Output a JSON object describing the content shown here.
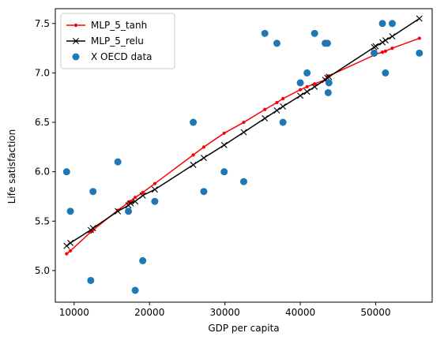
{
  "chart_data": {
    "type": "line",
    "xlabel": "GDP per capita",
    "ylabel": "Life satisfaction",
    "xlim": [
      7500,
      57500
    ],
    "ylim": [
      4.68,
      7.65
    ],
    "xticks": [
      10000,
      20000,
      30000,
      40000,
      50000
    ],
    "xtick_labels": [
      "10000",
      "20000",
      "30000",
      "40000",
      "50000"
    ],
    "yticks": [
      5.0,
      5.5,
      6.0,
      6.5,
      7.0,
      7.5
    ],
    "ytick_labels": [
      "5.0",
      "5.5",
      "6.0",
      "6.5",
      "7.0",
      "7.5"
    ],
    "grid": false,
    "legend_position": "top-left",
    "series": [
      {
        "name": "MLP_5_tanh",
        "kind": "line",
        "color": "#ff0000",
        "marker": "dot",
        "points": [
          [
            9000,
            5.17
          ],
          [
            9500,
            5.2
          ],
          [
            12200,
            5.39
          ],
          [
            12500,
            5.41
          ],
          [
            15800,
            5.61
          ],
          [
            17200,
            5.69
          ],
          [
            17500,
            5.7
          ],
          [
            18100,
            5.74
          ],
          [
            19100,
            5.79
          ],
          [
            20700,
            5.88
          ],
          [
            25800,
            6.17
          ],
          [
            27200,
            6.25
          ],
          [
            29900,
            6.39
          ],
          [
            32500,
            6.5
          ],
          [
            35300,
            6.63
          ],
          [
            36900,
            6.7
          ],
          [
            37700,
            6.74
          ],
          [
            40000,
            6.83
          ],
          [
            40900,
            6.86
          ],
          [
            41900,
            6.89
          ],
          [
            43300,
            6.93
          ],
          [
            43600,
            6.96
          ],
          [
            43800,
            6.97
          ],
          [
            49800,
            7.18
          ],
          [
            50000,
            7.19
          ],
          [
            50900,
            7.21
          ],
          [
            51300,
            7.22
          ],
          [
            52200,
            7.25
          ],
          [
            55800,
            7.35
          ]
        ]
      },
      {
        "name": "MLP_5_relu",
        "kind": "line",
        "color": "#000000",
        "marker": "x",
        "points": [
          [
            9000,
            5.25
          ],
          [
            9500,
            5.28
          ],
          [
            12200,
            5.41
          ],
          [
            12500,
            5.43
          ],
          [
            15800,
            5.6
          ],
          [
            17200,
            5.66
          ],
          [
            17500,
            5.68
          ],
          [
            18100,
            5.7
          ],
          [
            19100,
            5.76
          ],
          [
            20700,
            5.82
          ],
          [
            25800,
            6.07
          ],
          [
            27200,
            6.14
          ],
          [
            29900,
            6.27
          ],
          [
            32500,
            6.4
          ],
          [
            35300,
            6.54
          ],
          [
            36900,
            6.62
          ],
          [
            37700,
            6.66
          ],
          [
            40000,
            6.77
          ],
          [
            40900,
            6.81
          ],
          [
            41900,
            6.86
          ],
          [
            43300,
            6.93
          ],
          [
            43600,
            6.95
          ],
          [
            43800,
            6.96
          ],
          [
            49800,
            7.26
          ],
          [
            50000,
            7.27
          ],
          [
            50900,
            7.31
          ],
          [
            51300,
            7.33
          ],
          [
            52200,
            7.37
          ],
          [
            55800,
            7.55
          ]
        ]
      },
      {
        "name": "X OECD data",
        "kind": "scatter",
        "color": "#1f77b4",
        "marker": "circle",
        "points": [
          [
            9000,
            6.0
          ],
          [
            9500,
            5.6
          ],
          [
            12200,
            4.9
          ],
          [
            12500,
            5.8
          ],
          [
            15800,
            6.1
          ],
          [
            17200,
            5.6
          ],
          [
            18100,
            4.8
          ],
          [
            19100,
            5.1
          ],
          [
            20700,
            5.7
          ],
          [
            25800,
            6.5
          ],
          [
            27200,
            5.8
          ],
          [
            29900,
            6.0
          ],
          [
            32500,
            5.9
          ],
          [
            35300,
            7.4
          ],
          [
            36900,
            7.3
          ],
          [
            37700,
            6.5
          ],
          [
            40000,
            6.9
          ],
          [
            40900,
            7.0
          ],
          [
            41900,
            7.4
          ],
          [
            43300,
            7.3
          ],
          [
            43600,
            7.3
          ],
          [
            43700,
            6.8
          ],
          [
            43800,
            6.9
          ],
          [
            49800,
            7.2
          ],
          [
            50900,
            7.5
          ],
          [
            51300,
            7.0
          ],
          [
            52200,
            7.5
          ],
          [
            55800,
            7.2
          ]
        ]
      }
    ]
  }
}
